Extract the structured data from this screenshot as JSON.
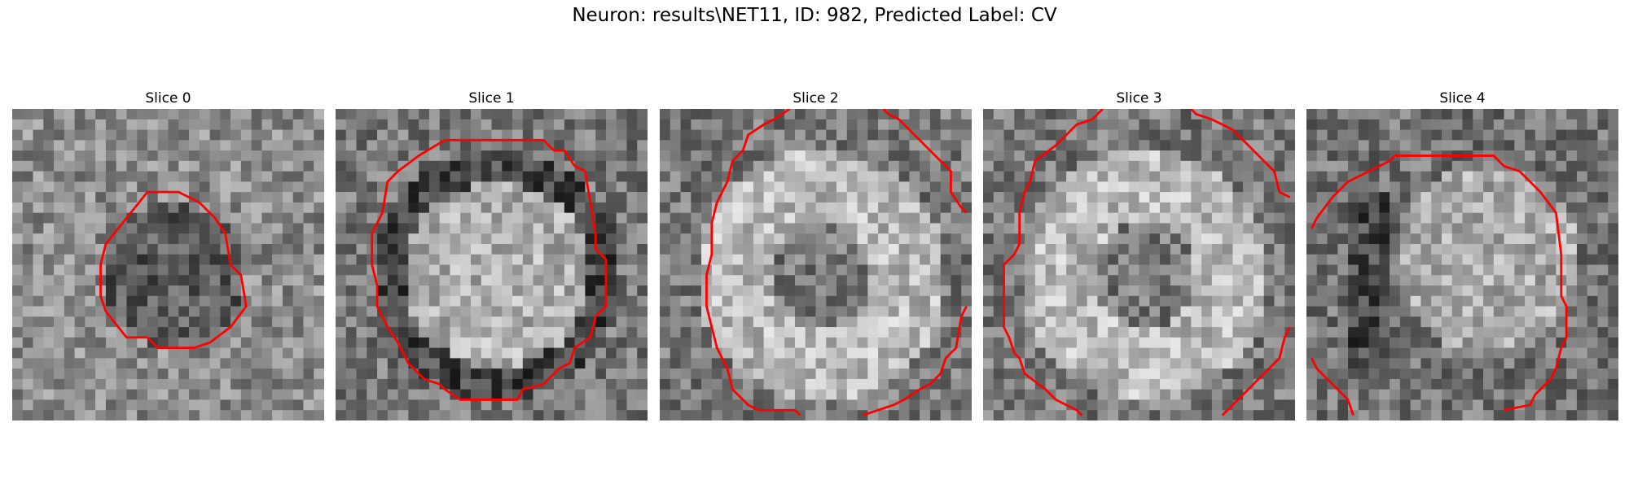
{
  "figure": {
    "title": "Neuron: results\\NET11, ID: 982, Predicted Label: CV"
  },
  "colors": {
    "contour": "#ff0000"
  },
  "panels": [
    {
      "title": "Slice 0",
      "seed": 11,
      "pattern": "dark-center"
    },
    {
      "title": "Slice 1",
      "seed": 23,
      "pattern": "bright-ring-dark"
    },
    {
      "title": "Slice 2",
      "seed": 37,
      "pattern": "bright-large"
    },
    {
      "title": "Slice 3",
      "seed": 41,
      "pattern": "bright-large"
    },
    {
      "title": "Slice 4",
      "seed": 59,
      "pattern": "bright-offset"
    }
  ]
}
